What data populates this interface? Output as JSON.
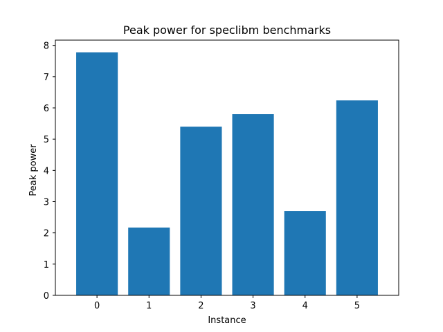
{
  "chart_data": {
    "type": "bar",
    "title": "Peak power for speclibm benchmarks",
    "xlabel": "Instance",
    "ylabel": "Peak power",
    "categories": [
      "0",
      "1",
      "2",
      "3",
      "4",
      "5"
    ],
    "values": [
      7.78,
      2.17,
      5.4,
      5.8,
      2.7,
      6.24
    ],
    "ylim": [
      0,
      8.17
    ],
    "yticks": [
      "0",
      "1",
      "2",
      "3",
      "4",
      "5",
      "6",
      "7",
      "8"
    ],
    "bar_color": "#1f77b4",
    "grid": false,
    "legend": "none"
  }
}
